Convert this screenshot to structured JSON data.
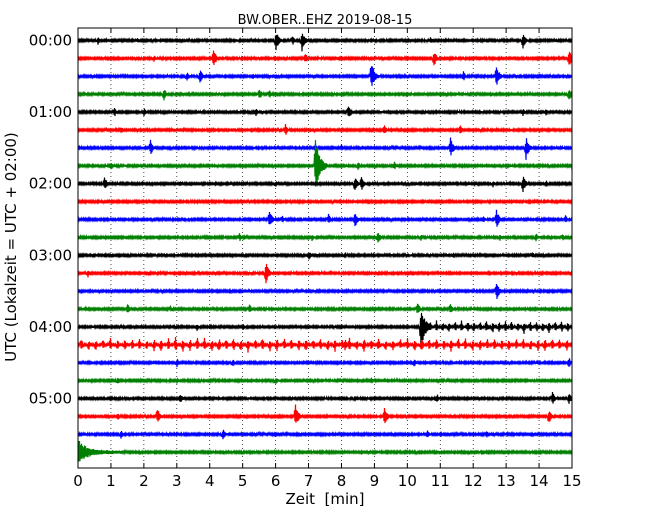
{
  "chart_data": {
    "type": "dayplot",
    "title": "BW.OBER..EHZ 2019-08-15",
    "xlabel": "Zeit  [min]",
    "ylabel": "UTC (Lokalzeit = UTC + 02:00)",
    "xlim": [
      0,
      15
    ],
    "x_ticks": [
      "0",
      "1",
      "2",
      "3",
      "4",
      "5",
      "6",
      "7",
      "8",
      "9",
      "10",
      "11",
      "12",
      "13",
      "14",
      "15"
    ],
    "y_tick_labels": [
      {
        "row": 0,
        "label": "00:00"
      },
      {
        "row": 4,
        "label": "01:00"
      },
      {
        "row": 8,
        "label": "02:00"
      },
      {
        "row": 12,
        "label": "03:00"
      },
      {
        "row": 16,
        "label": "04:00"
      },
      {
        "row": 20,
        "label": "05:00"
      }
    ],
    "rows": 24,
    "row_minutes": 15,
    "grid": "vertical dotted at each minute",
    "trace_colors": [
      "#000000",
      "#ff0000",
      "#0000ff",
      "#008000"
    ],
    "events": [
      {
        "row": 0,
        "t": 0.6,
        "amp": 0.35
      },
      {
        "row": 0,
        "t": 1.8,
        "amp": 0.25
      },
      {
        "row": 0,
        "t": 6.0,
        "amp": 0.9
      },
      {
        "row": 0,
        "t": 6.5,
        "amp": 0.45
      },
      {
        "row": 0,
        "t": 6.8,
        "amp": 0.8
      },
      {
        "row": 0,
        "t": 10.7,
        "amp": 0.3
      },
      {
        "row": 0,
        "t": 13.5,
        "amp": 0.75
      },
      {
        "row": 0,
        "t": 14.5,
        "amp": 0.25
      },
      {
        "row": 1,
        "t": 2.3,
        "amp": 0.3
      },
      {
        "row": 1,
        "t": 4.1,
        "amp": 0.8
      },
      {
        "row": 1,
        "t": 6.9,
        "amp": 0.45
      },
      {
        "row": 1,
        "t": 10.8,
        "amp": 0.7
      },
      {
        "row": 1,
        "t": 14.9,
        "amp": 0.75
      },
      {
        "row": 2,
        "t": 3.3,
        "amp": 0.45
      },
      {
        "row": 2,
        "t": 3.7,
        "amp": 0.6
      },
      {
        "row": 2,
        "t": 5.3,
        "amp": 0.35
      },
      {
        "row": 2,
        "t": 8.9,
        "amp": 1.2
      },
      {
        "row": 2,
        "t": 11.7,
        "amp": 0.4
      },
      {
        "row": 2,
        "t": 12.7,
        "amp": 0.9
      },
      {
        "row": 3,
        "t": 2.6,
        "amp": 0.55
      },
      {
        "row": 3,
        "t": 5.5,
        "amp": 0.5
      },
      {
        "row": 3,
        "t": 5.8,
        "amp": 0.4
      },
      {
        "row": 3,
        "t": 14.9,
        "amp": 0.6
      },
      {
        "row": 4,
        "t": 1.1,
        "amp": 0.4
      },
      {
        "row": 4,
        "t": 2.0,
        "amp": 0.35
      },
      {
        "row": 4,
        "t": 5.4,
        "amp": 0.35
      },
      {
        "row": 4,
        "t": 8.2,
        "amp": 0.7
      },
      {
        "row": 4,
        "t": 13.5,
        "amp": 0.35
      },
      {
        "row": 4,
        "t": 14.2,
        "amp": 0.35
      },
      {
        "row": 5,
        "t": 1.3,
        "amp": 0.35
      },
      {
        "row": 5,
        "t": 2.9,
        "amp": 0.25
      },
      {
        "row": 5,
        "t": 6.3,
        "amp": 0.45
      },
      {
        "row": 5,
        "t": 9.3,
        "amp": 0.45
      },
      {
        "row": 5,
        "t": 11.6,
        "amp": 0.5
      },
      {
        "row": 6,
        "t": 2.2,
        "amp": 0.6
      },
      {
        "row": 6,
        "t": 7.2,
        "amp": 0.35
      },
      {
        "row": 6,
        "t": 8.0,
        "amp": 0.35
      },
      {
        "row": 6,
        "t": 11.3,
        "amp": 0.85
      },
      {
        "row": 6,
        "t": 13.6,
        "amp": 0.9
      },
      {
        "row": 7,
        "t": 1.0,
        "amp": 0.35
      },
      {
        "row": 7,
        "t": 7.2,
        "amp": 2.2
      },
      {
        "row": 7,
        "t": 8.5,
        "amp": 0.35
      },
      {
        "row": 7,
        "t": 9.6,
        "amp": 0.35
      },
      {
        "row": 7,
        "t": 15.0,
        "amp": 0.35
      },
      {
        "row": 8,
        "t": 0.8,
        "amp": 0.6
      },
      {
        "row": 8,
        "t": 3.1,
        "amp": 0.3
      },
      {
        "row": 8,
        "t": 6.0,
        "amp": 0.35
      },
      {
        "row": 8,
        "t": 8.4,
        "amp": 0.7
      },
      {
        "row": 8,
        "t": 8.6,
        "amp": 0.6
      },
      {
        "row": 8,
        "t": 12.6,
        "amp": 0.3
      },
      {
        "row": 8,
        "t": 13.5,
        "amp": 0.75
      },
      {
        "row": 8,
        "t": 14.2,
        "amp": 0.35
      },
      {
        "row": 10,
        "t": 5.8,
        "amp": 0.8
      },
      {
        "row": 10,
        "t": 6.2,
        "amp": 0.35
      },
      {
        "row": 10,
        "t": 7.6,
        "amp": 0.45
      },
      {
        "row": 10,
        "t": 8.4,
        "amp": 0.7
      },
      {
        "row": 10,
        "t": 12.3,
        "amp": 0.35
      },
      {
        "row": 10,
        "t": 12.7,
        "amp": 0.8
      },
      {
        "row": 10,
        "t": 14.8,
        "amp": 0.35
      },
      {
        "row": 11,
        "t": 4.9,
        "amp": 0.35
      },
      {
        "row": 11,
        "t": 7.1,
        "amp": 0.3
      },
      {
        "row": 11,
        "t": 9.1,
        "amp": 0.55
      },
      {
        "row": 11,
        "t": 10.4,
        "amp": 0.35
      },
      {
        "row": 11,
        "t": 12.8,
        "amp": 0.35
      },
      {
        "row": 11,
        "t": 13.9,
        "amp": 0.4
      },
      {
        "row": 11,
        "t": 14.7,
        "amp": 0.35
      },
      {
        "row": 12,
        "t": 7.0,
        "amp": 0.45
      },
      {
        "row": 12,
        "t": 8.1,
        "amp": 0.3
      },
      {
        "row": 12,
        "t": 11.4,
        "amp": 0.25
      },
      {
        "row": 12,
        "t": 13.8,
        "amp": 0.3
      },
      {
        "row": 13,
        "t": 0.3,
        "amp": 0.35
      },
      {
        "row": 13,
        "t": 5.7,
        "amp": 0.9
      },
      {
        "row": 14,
        "t": 12.7,
        "amp": 0.75
      },
      {
        "row": 15,
        "t": 1.5,
        "amp": 0.45
      },
      {
        "row": 15,
        "t": 2.8,
        "amp": 0.3
      },
      {
        "row": 15,
        "t": 5.2,
        "amp": 0.45
      },
      {
        "row": 15,
        "t": 10.3,
        "amp": 0.55
      },
      {
        "row": 15,
        "t": 11.3,
        "amp": 0.5
      },
      {
        "row": 16,
        "t": 3.6,
        "amp": 0.35
      },
      {
        "row": 16,
        "t": 5.0,
        "amp": 0.3
      },
      {
        "row": 16,
        "t": 10.4,
        "amp": 1.8
      },
      {
        "row": 17,
        "t": 8.1,
        "amp": 0.5
      },
      {
        "row": 17,
        "t": 10.4,
        "amp": 0.4
      },
      {
        "row": 18,
        "t": 3.0,
        "amp": 0.35
      },
      {
        "row": 18,
        "t": 4.7,
        "amp": 0.35
      },
      {
        "row": 18,
        "t": 10.2,
        "amp": 0.35
      },
      {
        "row": 18,
        "t": 14.9,
        "amp": 0.45
      },
      {
        "row": 19,
        "t": 1.2,
        "amp": 0.35
      },
      {
        "row": 19,
        "t": 3.0,
        "amp": 0.3
      },
      {
        "row": 19,
        "t": 6.0,
        "amp": 0.35
      },
      {
        "row": 19,
        "t": 8.9,
        "amp": 0.35
      },
      {
        "row": 20,
        "t": 3.1,
        "amp": 0.45
      },
      {
        "row": 20,
        "t": 8.4,
        "amp": 0.35
      },
      {
        "row": 20,
        "t": 10.9,
        "amp": 0.35
      },
      {
        "row": 20,
        "t": 14.4,
        "amp": 0.55
      },
      {
        "row": 20,
        "t": 14.9,
        "amp": 0.5
      },
      {
        "row": 21,
        "t": 1.2,
        "amp": 0.35
      },
      {
        "row": 21,
        "t": 2.4,
        "amp": 0.7
      },
      {
        "row": 21,
        "t": 6.6,
        "amp": 0.9
      },
      {
        "row": 21,
        "t": 9.3,
        "amp": 0.8
      },
      {
        "row": 21,
        "t": 14.3,
        "amp": 0.65
      },
      {
        "row": 22,
        "t": 1.3,
        "amp": 0.35
      },
      {
        "row": 22,
        "t": 4.4,
        "amp": 0.45
      },
      {
        "row": 22,
        "t": 10.6,
        "amp": 0.35
      },
      {
        "row": 22,
        "t": 12.4,
        "amp": 0.3
      },
      {
        "row": 23,
        "t": 0.05,
        "amp": 0.9
      }
    ],
    "periodic_signals": [
      {
        "row": 16,
        "t_start": 10.5,
        "t_end": 15.0,
        "spacing_min": 0.19,
        "amp": 0.55
      },
      {
        "row": 17,
        "t_start": 0.1,
        "t_end": 15.0,
        "spacing_min": 0.22,
        "amp": 0.6
      }
    ]
  }
}
